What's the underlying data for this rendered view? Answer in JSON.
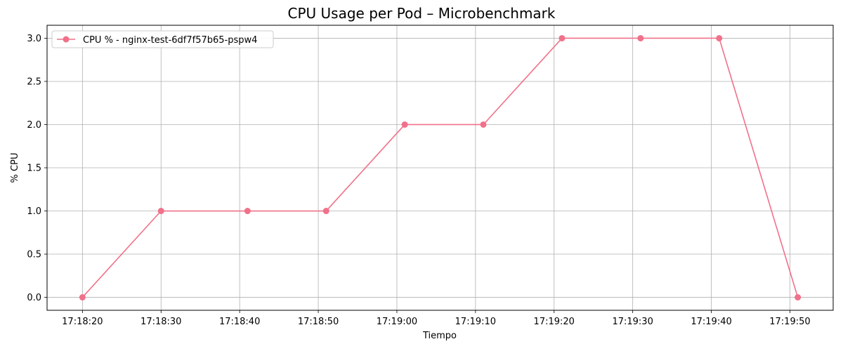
{
  "chart_data": {
    "type": "line",
    "title": "CPU Usage per Pod – Microbenchmark",
    "xlabel": "Tiempo",
    "ylabel": "% CPU",
    "x_ticks": [
      "17:18:20",
      "17:18:30",
      "17:18:40",
      "17:18:50",
      "17:19:00",
      "17:19:10",
      "17:19:20",
      "17:19:30",
      "17:19:40",
      "17:19:50"
    ],
    "y_ticks": [
      "0.0",
      "0.5",
      "1.0",
      "1.5",
      "2.0",
      "2.5",
      "3.0"
    ],
    "ylim": [
      -0.15,
      3.15
    ],
    "xlim": [
      "17:18:15.5",
      "17:19:55.5"
    ],
    "grid": true,
    "legend_position": "top-left",
    "series": [
      {
        "name": "CPU % - nginx-test-6df7f57b65-pspw4",
        "color": "#f0718a",
        "marker": "circle",
        "points": [
          {
            "x": "17:18:20",
            "y": 0
          },
          {
            "x": "17:18:30",
            "y": 1
          },
          {
            "x": "17:18:41",
            "y": 1
          },
          {
            "x": "17:18:51",
            "y": 1
          },
          {
            "x": "17:19:01",
            "y": 2
          },
          {
            "x": "17:19:11",
            "y": 2
          },
          {
            "x": "17:19:21",
            "y": 3
          },
          {
            "x": "17:19:31",
            "y": 3
          },
          {
            "x": "17:19:41",
            "y": 3
          },
          {
            "x": "17:19:51",
            "y": 0
          }
        ]
      }
    ]
  }
}
